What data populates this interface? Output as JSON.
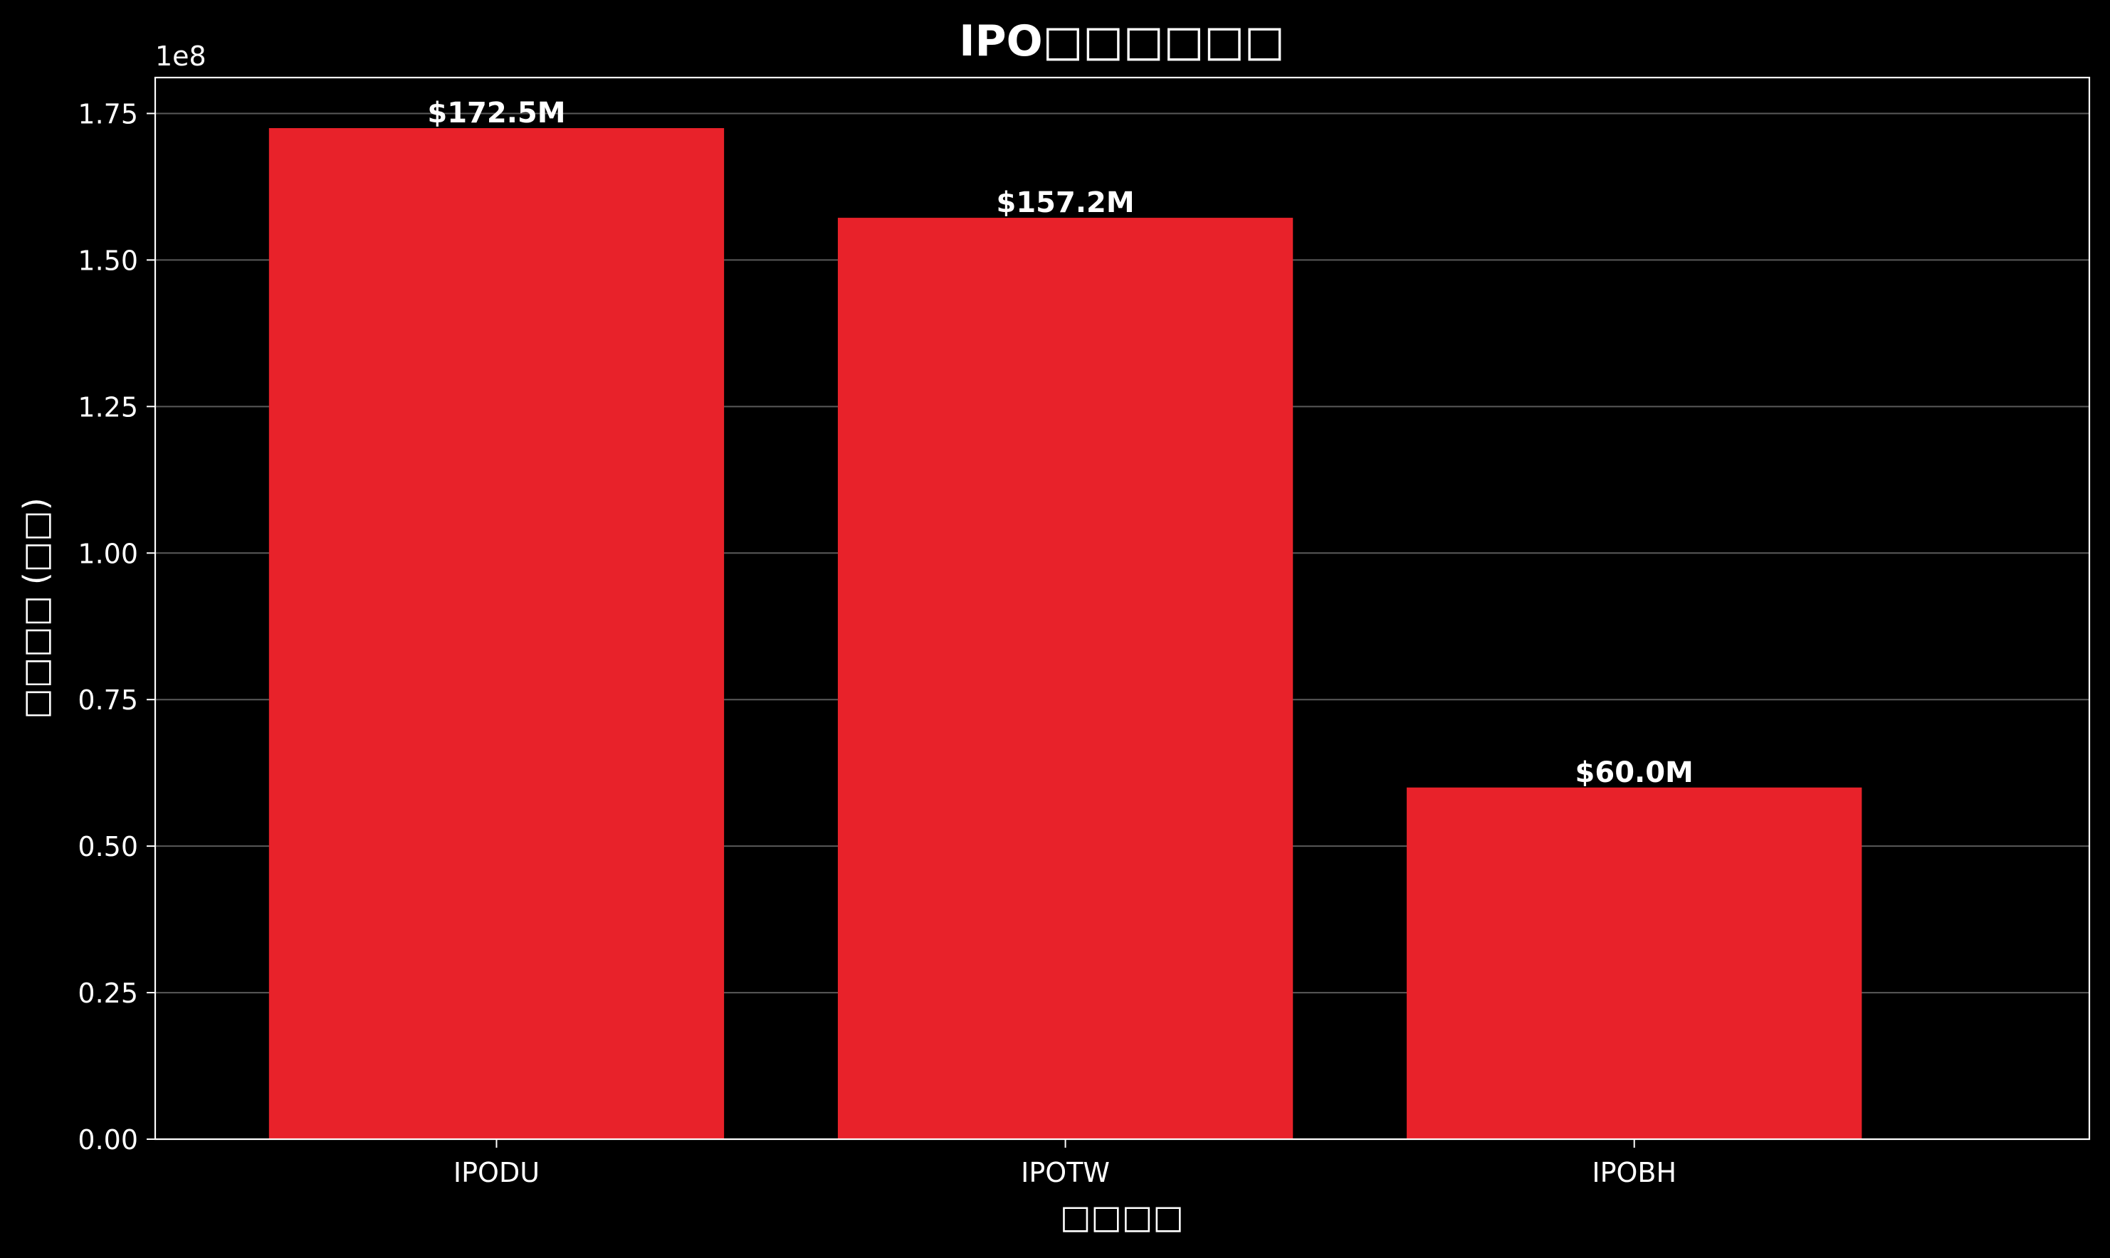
{
  "chart_data": {
    "type": "bar",
    "title": "IPO□□□□□□",
    "xlabel": "□□□□",
    "ylabel": "□□□□ (□□)",
    "y_offset_text": "1e8",
    "categories": [
      "IPODU",
      "IPOTW",
      "IPOBH"
    ],
    "values": [
      172500000,
      157200000,
      60000000
    ],
    "value_labels": [
      "$172.5M",
      "$157.2M",
      "$60.0M"
    ],
    "ylim": [
      0,
      181125000
    ],
    "y_ticks": [
      0,
      25000000,
      50000000,
      75000000,
      100000000,
      125000000,
      150000000,
      175000000
    ],
    "y_tick_labels": [
      "0.00",
      "0.25",
      "0.50",
      "0.75",
      "1.00",
      "1.25",
      "1.50",
      "1.75"
    ],
    "grid": true,
    "legend": "none",
    "colors": {
      "background": "#000000",
      "bar": "#e8222a",
      "text": "#ffffff",
      "axis": "#ffffff",
      "grid": "#5a5a5a"
    }
  }
}
